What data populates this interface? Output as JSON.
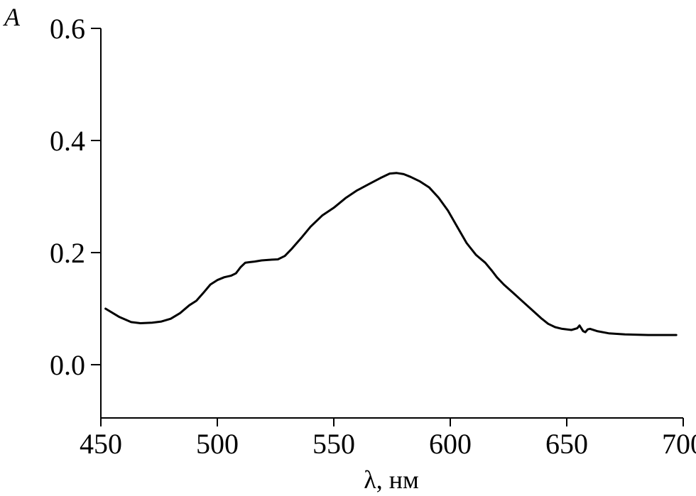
{
  "chart_data": {
    "type": "line",
    "title": "",
    "xlabel": "λ, нм",
    "ylabel": "A",
    "xlim": [
      450,
      700
    ],
    "ylim": [
      -0.095,
      0.6
    ],
    "xticks": [
      450,
      500,
      550,
      600,
      650,
      700
    ],
    "xtick_labels": [
      "450",
      "500",
      "550",
      "600",
      "650",
      "700"
    ],
    "yticks": [
      0.0,
      0.2,
      0.4,
      0.6
    ],
    "ytick_labels": [
      "0.0",
      "0.2",
      "0.4",
      "0.6"
    ],
    "grid": false,
    "series": [
      {
        "color": "#000000",
        "x": [
          452,
          458,
          463,
          467,
          472,
          476,
          480,
          484,
          488,
          491,
          494,
          497,
          500,
          503,
          506,
          508,
          510,
          512,
          514,
          516,
          519,
          522,
          526,
          529,
          532,
          536,
          540,
          545,
          550,
          555,
          560,
          565,
          570,
          574,
          577,
          580,
          583,
          587,
          591,
          595,
          599,
          603,
          607,
          611,
          615,
          618,
          620,
          623,
          627,
          631,
          635,
          639,
          642,
          645,
          648,
          652,
          654.5,
          655.5,
          657,
          658,
          659,
          660,
          663,
          668,
          675,
          685,
          697
        ],
        "y": [
          0.1,
          0.085,
          0.076,
          0.074,
          0.075,
          0.077,
          0.082,
          0.092,
          0.106,
          0.114,
          0.128,
          0.143,
          0.151,
          0.156,
          0.159,
          0.163,
          0.174,
          0.182,
          0.183,
          0.184,
          0.186,
          0.187,
          0.188,
          0.194,
          0.207,
          0.226,
          0.246,
          0.266,
          0.28,
          0.297,
          0.311,
          0.322,
          0.333,
          0.341,
          0.342,
          0.34,
          0.335,
          0.327,
          0.316,
          0.298,
          0.275,
          0.246,
          0.217,
          0.196,
          0.182,
          0.167,
          0.156,
          0.143,
          0.128,
          0.113,
          0.098,
          0.083,
          0.073,
          0.067,
          0.064,
          0.062,
          0.065,
          0.07,
          0.06,
          0.058,
          0.063,
          0.064,
          0.06,
          0.056,
          0.054,
          0.053,
          0.053
        ]
      }
    ]
  }
}
